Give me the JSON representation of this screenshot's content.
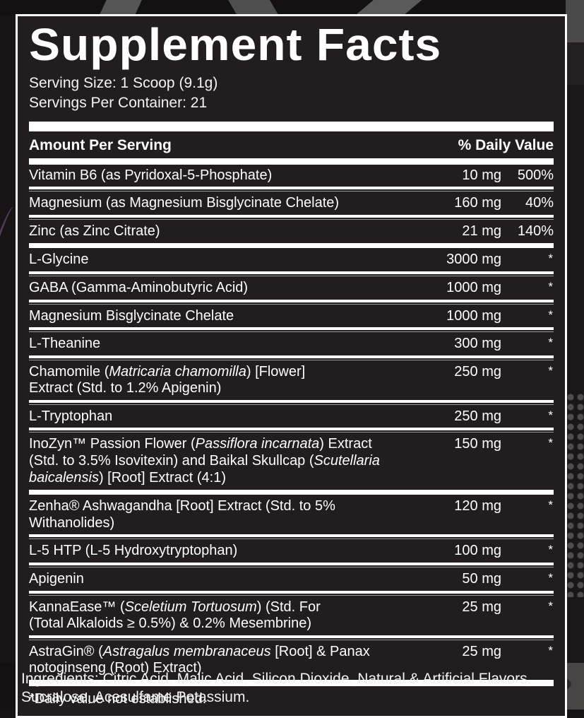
{
  "colors": {
    "panel_background": "#221e1f",
    "panel_border": "#ffffff",
    "text": "#ffffff",
    "outer_background": "#181415",
    "art_gray": "#4a4747"
  },
  "panel": {
    "title": "Supplement Facts",
    "serving_size": "Serving Size: 1 Scoop (9.1g)",
    "servings_per_container": "Servings Per Container: 21",
    "header": {
      "amount": "Amount Per Serving",
      "daily_value": "% Daily Value"
    },
    "sections": [
      {
        "rows": [
          {
            "name": [
              {
                "t": "Vitamin B6 (as Pyridoxal-5-Phosphate)"
              }
            ],
            "amount": "10 mg",
            "dv": "500%"
          },
          {
            "name": [
              {
                "t": "Magnesium (as Magnesium Bisglycinate Chelate)"
              }
            ],
            "amount": "160 mg",
            "dv": "40%"
          },
          {
            "name": [
              {
                "t": "Zinc (as Zinc Citrate)"
              }
            ],
            "amount": "21 mg",
            "dv": "140%"
          }
        ]
      },
      {
        "rows": [
          {
            "name": [
              {
                "t": "L-Glycine"
              }
            ],
            "amount": "3000 mg",
            "dv": "*"
          },
          {
            "name": [
              {
                "t": "GABA (Gamma-Aminobutyric Acid)"
              }
            ],
            "amount": "1000 mg",
            "dv": "*"
          },
          {
            "name": [
              {
                "t": "Magnesium Bisglycinate Chelate"
              }
            ],
            "amount": "1000 mg",
            "dv": "*"
          },
          {
            "name": [
              {
                "t": "L-Theanine"
              }
            ],
            "amount": "300 mg",
            "dv": "*"
          },
          {
            "name": [
              {
                "t": "Chamomile ("
              },
              {
                "t": "Matricaria chamomilla",
                "i": true
              },
              {
                "t": ") [Flower]"
              },
              {
                "br": true
              },
              {
                "t": "Extract (Std. to 1.2% Apigenin)"
              }
            ],
            "amount": "250 mg",
            "dv": "*"
          },
          {
            "name": [
              {
                "t": "L-Tryptophan"
              }
            ],
            "amount": "250 mg",
            "dv": "*"
          },
          {
            "name": [
              {
                "t": "InoZyn™ Passion Flower ("
              },
              {
                "t": "Passiflora incarnata",
                "i": true
              },
              {
                "t": ") Extract"
              },
              {
                "br": true
              },
              {
                "t": "(Std. to 3.5% Isovitexin) and Baikal Skullcap ("
              },
              {
                "t": "Scutellaria",
                "i": true
              },
              {
                "br": true
              },
              {
                "t": "baicalensis",
                "i": true
              },
              {
                "t": ") [Root] Extract (4:1)"
              }
            ],
            "amount": "150 mg",
            "dv": "*"
          }
        ]
      },
      {
        "rows": [
          {
            "name": [
              {
                "t": "Zenha® Ashwagandha [Root] Extract (Std. to 5% Withanolides)"
              }
            ],
            "amount": "120 mg",
            "dv": "*"
          },
          {
            "name": [
              {
                "t": "L-5 HTP (L-5 Hydroxytryptophan)"
              }
            ],
            "amount": "100 mg",
            "dv": "*"
          },
          {
            "name": [
              {
                "t": "Apigenin"
              }
            ],
            "amount": "50 mg",
            "dv": "*"
          },
          {
            "name": [
              {
                "t": "KannaEase™ ("
              },
              {
                "t": "Sceletium Tortuosum",
                "i": true
              },
              {
                "t": ") (Std. For"
              },
              {
                "br": true
              },
              {
                "t": "(Total Alkaloids ≥ 0.5%) & 0.2% Mesembrine)"
              }
            ],
            "amount": "25 mg",
            "dv": "*"
          },
          {
            "name": [
              {
                "t": "AstraGin® ("
              },
              {
                "t": "Astragalus membranaceus",
                "i": true
              },
              {
                "t": " [Root] & Panax"
              },
              {
                "br": true
              },
              {
                "t": "notoginseng (Root) Extract)"
              }
            ],
            "amount": "25 mg",
            "dv": "*"
          }
        ]
      }
    ],
    "footnote": "*Daily value not established."
  },
  "ingredients": "Ingredients: Citric Acid, Malic Acid, Silicon Dioxide, Natural & Artificial Flavors, Sucralose, Acesulfame Potassium."
}
